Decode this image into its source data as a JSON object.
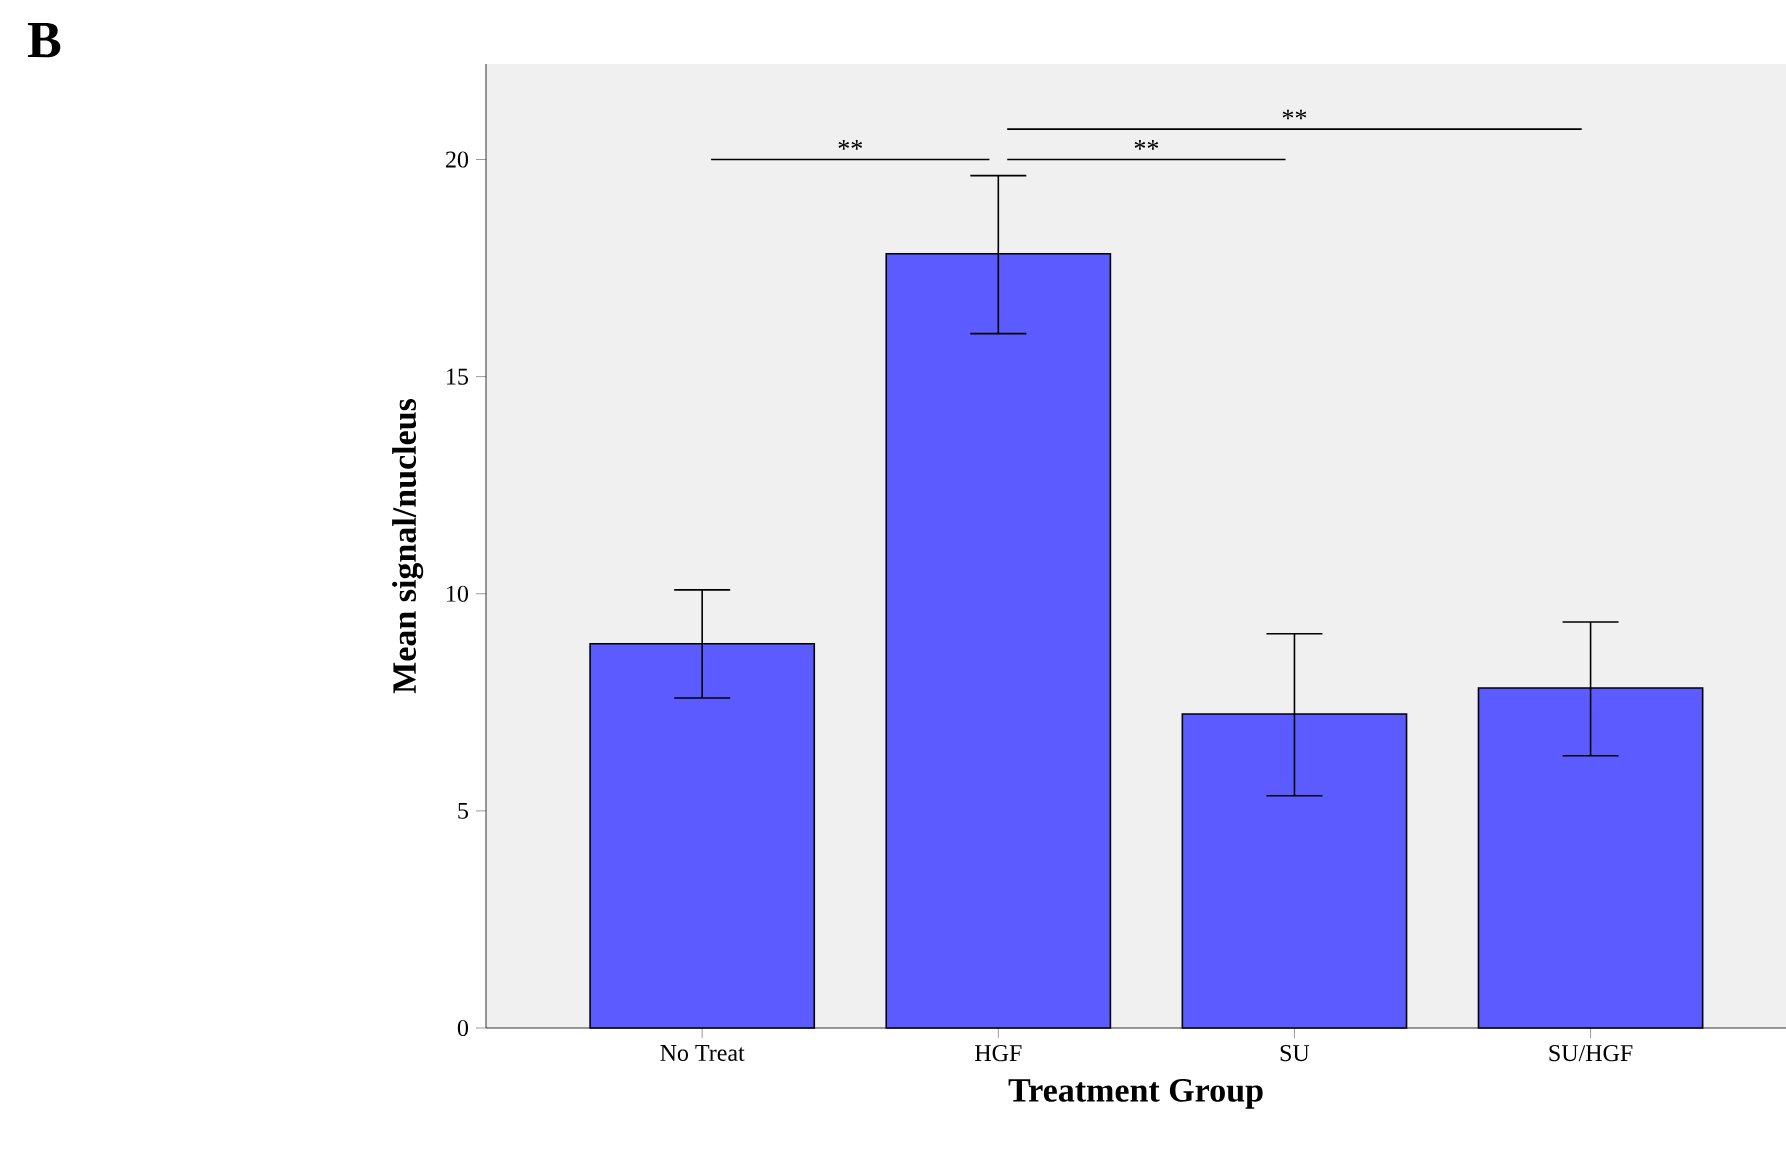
{
  "chart_data": {
    "type": "bar",
    "categories": [
      "No Treat",
      "HGF",
      "SU",
      "SU/HGF"
    ],
    "values": [
      8.85,
      17.83,
      7.23,
      7.83
    ],
    "errors": [
      [
        7.6,
        10.09
      ],
      [
        15.99,
        19.63
      ],
      [
        5.35,
        9.08
      ],
      [
        6.27,
        9.35
      ]
    ],
    "color": "#5b5bff",
    "xlabel": "Treatment Group",
    "ylabel": "Mean signal/nucleus",
    "ylim": [
      0,
      22.2
    ],
    "yticks": [
      0,
      5,
      10,
      15,
      20
    ],
    "grid": false,
    "annotations": [
      "B",
      "**",
      "**",
      "**"
    ]
  }
}
